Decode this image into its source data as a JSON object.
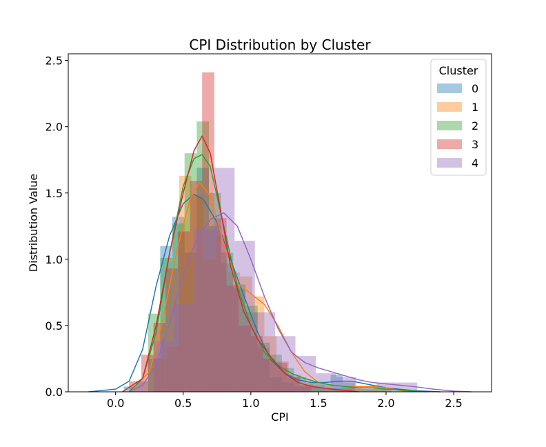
{
  "chart_data": {
    "type": "histogram-kde",
    "title": "CPI Distribution by Cluster",
    "xlabel": "CPI",
    "ylabel": "Distribution Value",
    "xlim": [
      -0.35,
      2.78
    ],
    "ylim": [
      0.0,
      2.55
    ],
    "xticks": [
      0.0,
      0.5,
      1.0,
      1.5,
      2.0,
      2.5
    ],
    "xtick_labels": [
      "0.0",
      "0.5",
      "1.0",
      "1.5",
      "2.0",
      "2.5"
    ],
    "yticks": [
      0.0,
      0.5,
      1.0,
      1.5,
      2.0,
      2.5
    ],
    "ytick_labels": [
      "0.0",
      "0.5",
      "1.0",
      "1.5",
      "2.0",
      "2.5"
    ],
    "grid": false,
    "legend": {
      "title": "Cluster",
      "placement": "top-right"
    },
    "series": [
      {
        "name": "0",
        "color": "#1f77b4",
        "hist": {
          "edges": [
            0.06,
            0.15,
            0.24,
            0.33,
            0.42,
            0.51,
            0.6,
            0.69,
            0.78,
            0.87,
            0.96,
            1.05,
            1.14,
            1.23,
            1.32,
            1.41,
            1.5,
            1.59,
            1.68,
            1.77
          ],
          "heights": [
            0.04,
            0.08,
            0.25,
            1.1,
            1.32,
            1.05,
            1.69,
            1.25,
            0.97,
            0.78,
            0.6,
            0.33,
            0.11,
            0.07,
            0.04,
            0.04,
            0.03,
            0.13,
            0.07
          ]
        },
        "kde": {
          "x": [
            -0.2,
            0.0,
            0.1,
            0.2,
            0.3,
            0.4,
            0.5,
            0.58,
            0.65,
            0.75,
            0.85,
            0.95,
            1.05,
            1.15,
            1.25,
            1.35,
            1.45,
            1.55,
            1.65,
            1.75,
            1.85,
            2.0,
            2.2,
            2.4
          ],
          "y": [
            0.0,
            0.02,
            0.08,
            0.32,
            0.8,
            1.18,
            1.42,
            1.49,
            1.45,
            1.28,
            1.0,
            0.72,
            0.45,
            0.24,
            0.14,
            0.09,
            0.07,
            0.07,
            0.08,
            0.08,
            0.06,
            0.03,
            0.01,
            0.0
          ]
        }
      },
      {
        "name": "1",
        "color": "#ff7f0e",
        "hist": {
          "edges": [
            0.29,
            0.38,
            0.47,
            0.56,
            0.65,
            0.74,
            0.83,
            0.92,
            1.01,
            1.1,
            1.19,
            1.28,
            1.37,
            1.46,
            1.55,
            1.64,
            1.73,
            1.82,
            1.91,
            2.0
          ],
          "heights": [
            0.25,
            0.34,
            1.63,
            1.48,
            1.0,
            1.18,
            0.9,
            0.87,
            0.72,
            0.42,
            0.23,
            0.13,
            0.06,
            0.05,
            0.02,
            0.02,
            0.03,
            0.02,
            0.04
          ]
        },
        "kde": {
          "x": [
            0.1,
            0.25,
            0.35,
            0.45,
            0.55,
            0.62,
            0.7,
            0.8,
            0.9,
            1.0,
            1.1,
            1.2,
            1.3,
            1.4,
            1.5,
            1.6,
            1.7,
            1.8,
            1.9,
            2.0,
            2.1,
            2.2
          ],
          "y": [
            0.0,
            0.15,
            0.55,
            1.05,
            1.45,
            1.58,
            1.48,
            1.12,
            0.82,
            0.74,
            0.66,
            0.5,
            0.3,
            0.15,
            0.07,
            0.05,
            0.04,
            0.04,
            0.04,
            0.03,
            0.01,
            0.0
          ]
        }
      },
      {
        "name": "2",
        "color": "#2ca02c",
        "hist": {
          "edges": [
            0.24,
            0.33,
            0.42,
            0.51,
            0.6,
            0.69,
            0.78,
            0.87,
            0.96,
            1.05,
            1.14,
            1.23,
            1.32,
            1.41,
            1.5,
            1.59,
            1.68,
            1.77,
            1.86,
            1.95,
            2.04
          ],
          "heights": [
            0.59,
            1.01,
            1.27,
            1.8,
            2.04,
            1.5,
            1.05,
            0.81,
            0.65,
            0.37,
            0.28,
            0.18,
            0.11,
            0.07,
            0.06,
            0.03,
            0.04,
            0.02,
            0.02,
            0.02
          ]
        },
        "kde": {
          "x": [
            0.1,
            0.2,
            0.3,
            0.4,
            0.5,
            0.58,
            0.64,
            0.7,
            0.8,
            0.9,
            1.0,
            1.1,
            1.2,
            1.3,
            1.4,
            1.5,
            1.6,
            1.7,
            1.8,
            1.9,
            2.0,
            2.15,
            2.3
          ],
          "y": [
            0.0,
            0.1,
            0.45,
            1.05,
            1.55,
            1.76,
            1.79,
            1.7,
            1.25,
            0.8,
            0.5,
            0.3,
            0.2,
            0.14,
            0.1,
            0.07,
            0.05,
            0.04,
            0.03,
            0.03,
            0.02,
            0.01,
            0.0
          ]
        }
      },
      {
        "name": "3",
        "color": "#d62728",
        "hist": {
          "edges": [
            0.1,
            0.19,
            0.28,
            0.37,
            0.46,
            0.55,
            0.64,
            0.73,
            0.82,
            0.91,
            1.0,
            1.09,
            1.18,
            1.27,
            1.36,
            1.45
          ],
          "heights": [
            0.08,
            0.28,
            0.52,
            0.93,
            1.21,
            1.59,
            2.41,
            1.31,
            0.8,
            0.5,
            0.42,
            0.25,
            0.22,
            0.11,
            0.05
          ]
        },
        "kde": {
          "x": [
            0.05,
            0.2,
            0.3,
            0.4,
            0.5,
            0.58,
            0.64,
            0.7,
            0.78,
            0.85,
            0.95,
            1.05,
            1.15,
            1.25,
            1.35,
            1.45,
            1.6,
            1.8
          ],
          "y": [
            0.0,
            0.1,
            0.5,
            1.05,
            1.5,
            1.82,
            1.93,
            1.8,
            1.35,
            0.95,
            0.6,
            0.4,
            0.26,
            0.14,
            0.07,
            0.04,
            0.02,
            0.0
          ]
        }
      },
      {
        "name": "4",
        "color": "#9467bd",
        "hist": {
          "edges": [
            0.28,
            0.43,
            0.58,
            0.73,
            0.88,
            1.03,
            1.18,
            1.33,
            1.48,
            1.63,
            1.78,
            1.93,
            2.08,
            2.23
          ],
          "heights": [
            0.38,
            0.66,
            1.23,
            1.69,
            1.14,
            0.6,
            0.42,
            0.27,
            0.14,
            0.11,
            0.04,
            0.07,
            0.07
          ]
        },
        "kde": {
          "x": [
            0.1,
            0.2,
            0.3,
            0.4,
            0.5,
            0.6,
            0.7,
            0.8,
            0.9,
            1.0,
            1.1,
            1.2,
            1.3,
            1.4,
            1.5,
            1.6,
            1.7,
            1.8,
            1.9,
            2.0,
            2.1,
            2.2,
            2.35,
            2.5,
            2.63
          ],
          "y": [
            0.0,
            0.05,
            0.2,
            0.52,
            0.88,
            1.15,
            1.3,
            1.35,
            1.25,
            1.0,
            0.72,
            0.48,
            0.3,
            0.22,
            0.18,
            0.15,
            0.12,
            0.09,
            0.07,
            0.06,
            0.05,
            0.04,
            0.02,
            0.005,
            0.0
          ]
        }
      }
    ]
  }
}
